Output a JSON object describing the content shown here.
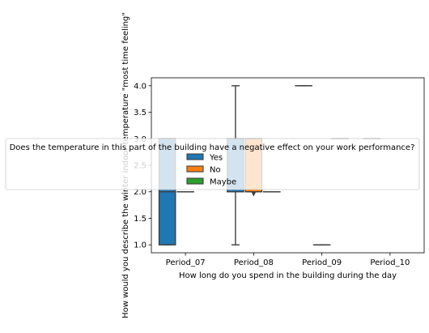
{
  "chart_data": {
    "type": "box",
    "xlabel": "How long do you spend in the building during the day",
    "ylabel": "How would you describe the winter indoor temperature \"most time feeling\"",
    "ylim": [
      0.85,
      4.15
    ],
    "yticks": [
      "1.0",
      "1.5",
      "2.0",
      "2.5",
      "3.0",
      "3.5",
      "4.0"
    ],
    "categories": [
      "Period_07",
      "Period_08",
      "Period_09",
      "Period_10"
    ],
    "legend": {
      "title": "Does the temperature in this part of the building have a negative effect on your work performance?",
      "placement": "center"
    },
    "series": [
      {
        "name": "Yes",
        "color": "#1f77b4",
        "boxes": [
          {
            "category": "Period_07",
            "whislo": 1.0,
            "q1": 1.0,
            "median": 2.0,
            "q3": 3.0,
            "whishi": 3.0,
            "fliers": []
          },
          {
            "category": "Period_08",
            "whislo": 1.0,
            "q1": 2.0,
            "median": 3.0,
            "q3": 3.0,
            "whishi": 4.0,
            "fliers": []
          },
          {
            "category": "Period_09",
            "whislo": 4.0,
            "q1": 4.0,
            "median": 4.0,
            "q3": 4.0,
            "whishi": 4.0,
            "fliers": []
          },
          {
            "category": "Period_10",
            "whislo": 3.0,
            "q1": 3.0,
            "median": 3.0,
            "q3": 3.0,
            "whishi": 3.0,
            "fliers": []
          }
        ]
      },
      {
        "name": "No",
        "color": "#ff7f0e",
        "boxes": [
          {
            "category": "Period_07",
            "whislo": 2.0,
            "q1": 2.0,
            "median": 2.0,
            "q3": 2.0,
            "whishi": 2.0,
            "fliers": []
          },
          {
            "category": "Period_08",
            "whislo": 2.0,
            "q1": 2.0,
            "median": 3.0,
            "q3": 3.0,
            "whishi": 3.0,
            "fliers": [
              1.95
            ]
          },
          {
            "category": "Period_09",
            "whislo": 1.0,
            "q1": 1.0,
            "median": 1.0,
            "q3": 1.0,
            "whishi": 1.0,
            "fliers": []
          },
          {
            "category": "Period_10",
            "whislo": null,
            "q1": null,
            "median": null,
            "q3": null,
            "whishi": null,
            "fliers": []
          }
        ]
      },
      {
        "name": "Maybe",
        "color": "#2ca02c",
        "boxes": [
          {
            "category": "Period_07",
            "whislo": null,
            "q1": null,
            "median": null,
            "q3": null,
            "whishi": null,
            "fliers": []
          },
          {
            "category": "Period_08",
            "whislo": 2.0,
            "q1": 2.0,
            "median": 2.0,
            "q3": 2.0,
            "whishi": 2.0,
            "fliers": []
          },
          {
            "category": "Period_09",
            "whislo": 3.0,
            "q1": 3.0,
            "median": 3.0,
            "q3": 3.0,
            "whishi": 3.0,
            "fliers": []
          },
          {
            "category": "Period_10",
            "whislo": null,
            "q1": null,
            "median": null,
            "q3": null,
            "whishi": null,
            "fliers": []
          }
        ]
      }
    ],
    "grid": false
  }
}
